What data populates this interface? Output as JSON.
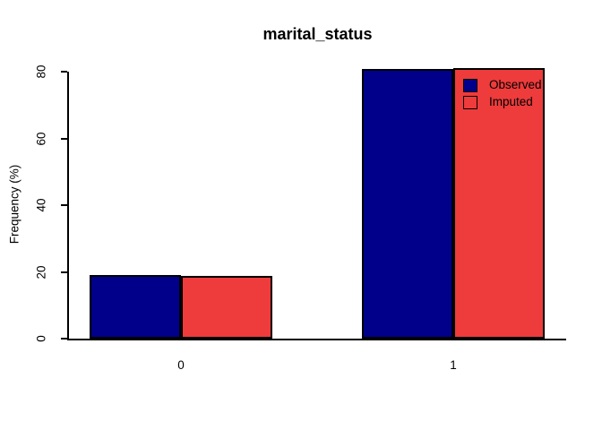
{
  "chart_data": {
    "type": "bar",
    "title": "marital_status",
    "xlabel": "",
    "ylabel": "Frequency (%)",
    "categories": [
      "0",
      "1"
    ],
    "series": [
      {
        "name": "Observed",
        "color": "#00008B",
        "values": [
          19.2,
          80.8
        ]
      },
      {
        "name": "Imputed",
        "color": "#EE3B3B",
        "values": [
          18.7,
          81.3
        ]
      }
    ],
    "yticks": [
      0,
      20,
      40,
      60,
      80
    ],
    "ylim": [
      0,
      85
    ],
    "grid": false,
    "legend_position": "top-right-inside",
    "legend": {
      "entries": [
        {
          "label": "Observed",
          "swatch_style": "filled"
        },
        {
          "label": "Imputed",
          "swatch_style": "outline-transparent"
        }
      ]
    },
    "colors": {
      "observed": "#00008B",
      "imputed": "#EE3B3B",
      "axis": "#000000",
      "bar_border": "#000000",
      "background": "#FFFFFF"
    }
  }
}
